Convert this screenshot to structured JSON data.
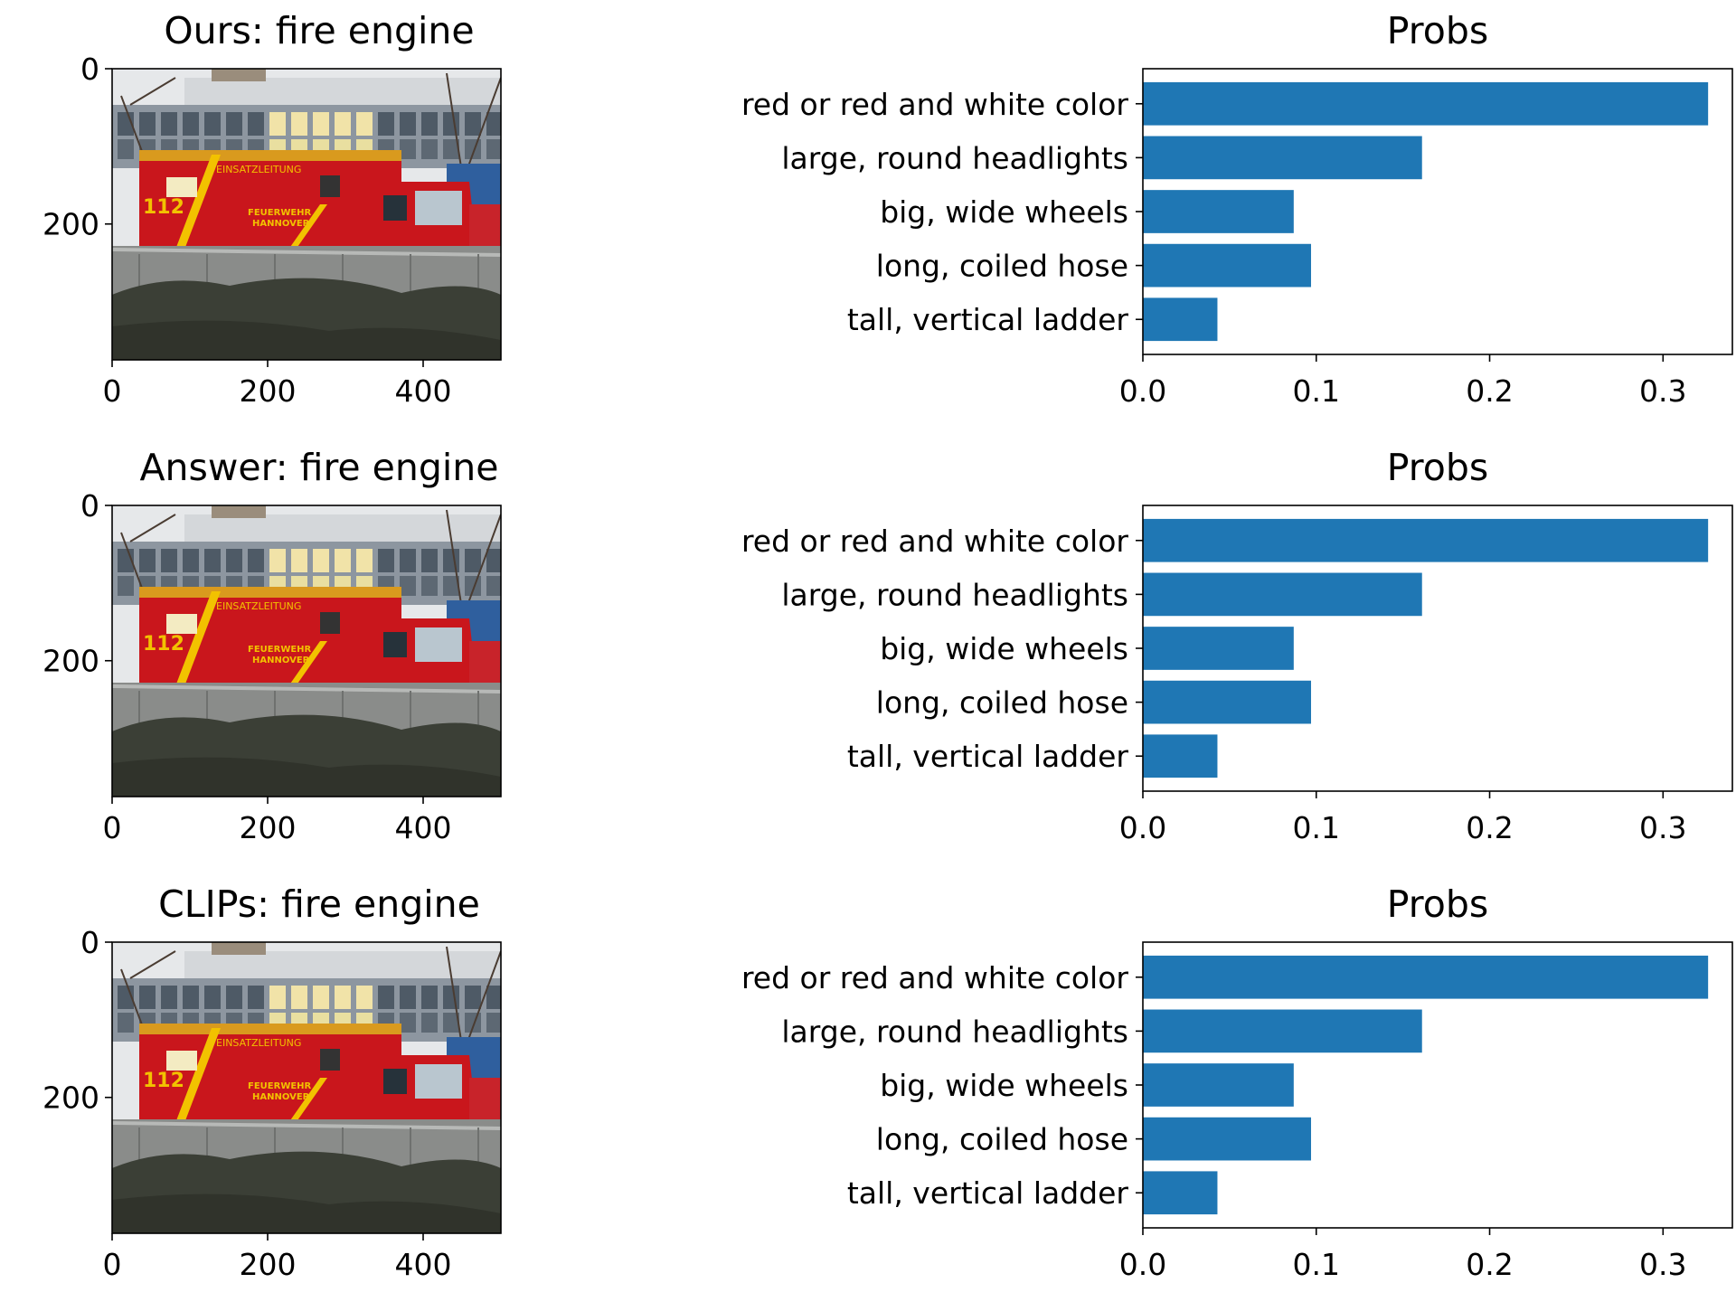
{
  "figure": {
    "panels": [
      {
        "image_title": "Ours: fire engine",
        "chart_title": "Probs"
      },
      {
        "image_title": "Answer: fire engine",
        "chart_title": "Probs"
      },
      {
        "image_title": "CLIPs: fire engine",
        "chart_title": "Probs"
      }
    ],
    "image_axes": {
      "y_ticks": [
        "0",
        "200"
      ],
      "x_ticks": [
        "0",
        "200",
        "400"
      ]
    },
    "image_photo_content": {
      "lettering": [
        "EINSATZLEITUNG",
        "FEUERWEHR",
        "HANNOVER",
        "112"
      ]
    }
  },
  "colors": {
    "bar": "#1f77b4",
    "axis": "#000000",
    "truck_red": "#c9161c",
    "truck_stripe": "#f2c200",
    "building": "#8d96a0",
    "hedge": "#3b3f36",
    "wall": "#8a8c8a"
  },
  "chart_data": [
    {
      "type": "bar",
      "orientation": "horizontal",
      "title": "Probs",
      "categories": [
        "red or red and white color",
        "large, round headlights",
        "big, wide wheels",
        "long, coiled hose",
        "tall, vertical ladder"
      ],
      "values": [
        0.326,
        0.161,
        0.087,
        0.097,
        0.043
      ],
      "xlim": [
        0.0,
        0.34
      ],
      "xticks": [
        "0.0",
        "0.1",
        "0.2",
        "0.3"
      ],
      "grid": false,
      "legend": "none"
    },
    {
      "type": "bar",
      "orientation": "horizontal",
      "title": "Probs",
      "categories": [
        "red or red and white color",
        "large, round headlights",
        "big, wide wheels",
        "long, coiled hose",
        "tall, vertical ladder"
      ],
      "values": [
        0.326,
        0.161,
        0.087,
        0.097,
        0.043
      ],
      "xlim": [
        0.0,
        0.34
      ],
      "xticks": [
        "0.0",
        "0.1",
        "0.2",
        "0.3"
      ],
      "grid": false,
      "legend": "none"
    },
    {
      "type": "bar",
      "orientation": "horizontal",
      "title": "Probs",
      "categories": [
        "red or red and white color",
        "large, round headlights",
        "big, wide wheels",
        "long, coiled hose",
        "tall, vertical ladder"
      ],
      "values": [
        0.326,
        0.161,
        0.087,
        0.097,
        0.043
      ],
      "xlim": [
        0.0,
        0.34
      ],
      "xticks": [
        "0.0",
        "0.1",
        "0.2",
        "0.3"
      ],
      "grid": false,
      "legend": "none"
    }
  ]
}
